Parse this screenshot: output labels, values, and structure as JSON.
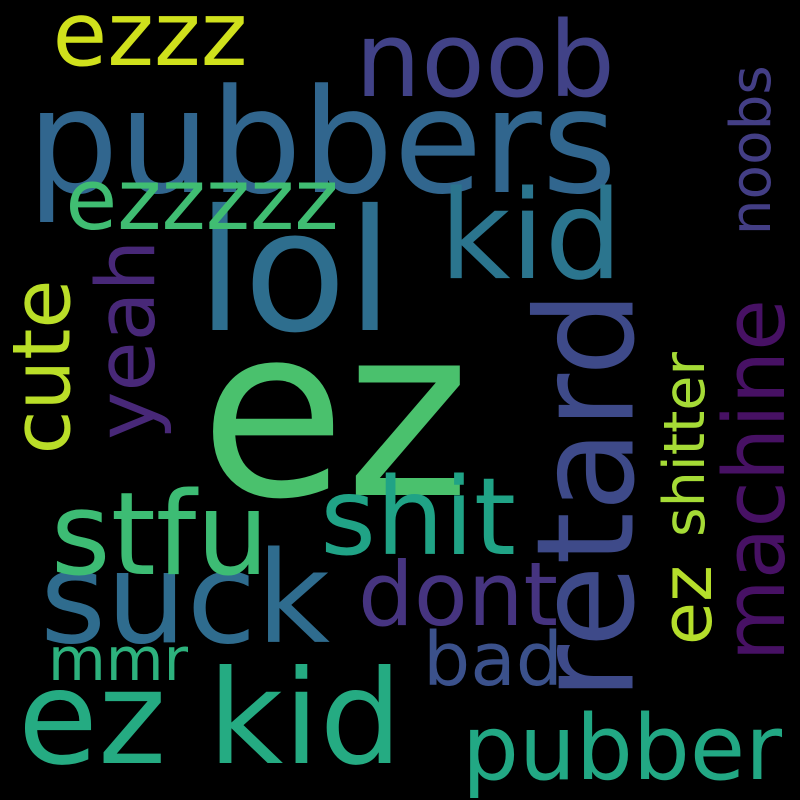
{
  "words": [
    {
      "text": "ez",
      "color": "#4ac16d"
    },
    {
      "text": "pubbers",
      "color": "#31668e"
    },
    {
      "text": "suck",
      "color": "#2f6c8e"
    },
    {
      "text": "retard",
      "color": "#3e4a89"
    },
    {
      "text": "ez kid",
      "color": "#25ab82"
    },
    {
      "text": "noob",
      "color": "#414287"
    },
    {
      "text": "lol",
      "color": "#2e6e8e"
    },
    {
      "text": "kid",
      "color": "#2b758e"
    },
    {
      "text": "machine",
      "color": "#471164"
    },
    {
      "text": "noobs",
      "color": "#433e85"
    },
    {
      "text": "shitter",
      "color": "#a5db36"
    },
    {
      "text": "pubber",
      "color": "#22a884"
    },
    {
      "text": "stfu",
      "color": "#3dbc74"
    },
    {
      "text": "shit",
      "color": "#20a386"
    },
    {
      "text": "ezzzzz",
      "color": "#40bd72"
    },
    {
      "text": "cute",
      "color": "#bade28"
    },
    {
      "text": "yeah",
      "color": "#482878"
    },
    {
      "text": "ezzz",
      "color": "#d0e11c"
    },
    {
      "text": "dont",
      "color": "#463480"
    },
    {
      "text": "bad",
      "color": "#3b518b"
    },
    {
      "text": "ez",
      "color": "#b5de2b"
    },
    {
      "text": "mmr",
      "color": "#2db27d"
    }
  ]
}
